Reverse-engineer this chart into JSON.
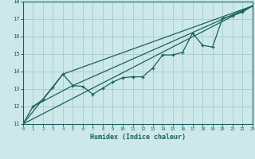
{
  "title": "",
  "xlabel": "Humidex (Indice chaleur)",
  "bg_color": "#cce8e8",
  "grid_color": "#aacfcf",
  "line_color": "#1a6060",
  "xlim": [
    0,
    23
  ],
  "ylim": [
    11,
    18
  ],
  "xticks": [
    0,
    1,
    2,
    3,
    4,
    5,
    6,
    7,
    8,
    9,
    10,
    11,
    12,
    13,
    14,
    15,
    16,
    17,
    18,
    19,
    20,
    21,
    22,
    23
  ],
  "yticks": [
    11,
    12,
    13,
    14,
    15,
    16,
    17,
    18
  ],
  "line1_x": [
    0,
    1,
    2,
    3,
    4,
    5,
    6,
    7,
    8,
    9,
    10,
    11,
    12,
    13,
    14,
    15,
    16,
    17,
    18,
    19,
    20,
    21,
    22,
    23
  ],
  "line1_y": [
    11,
    12.0,
    12.4,
    13.1,
    13.85,
    13.2,
    13.15,
    12.7,
    13.05,
    13.4,
    13.65,
    13.7,
    13.7,
    14.2,
    14.95,
    14.95,
    15.1,
    16.2,
    15.5,
    15.4,
    17.05,
    17.2,
    17.4,
    17.75
  ],
  "line2_x": [
    0,
    23
  ],
  "line2_y": [
    11,
    17.75
  ],
  "line3_x": [
    0,
    4,
    23
  ],
  "line3_y": [
    11,
    13.85,
    17.75
  ],
  "line4_x": [
    1,
    5,
    23
  ],
  "line4_y": [
    12.0,
    13.2,
    17.75
  ]
}
